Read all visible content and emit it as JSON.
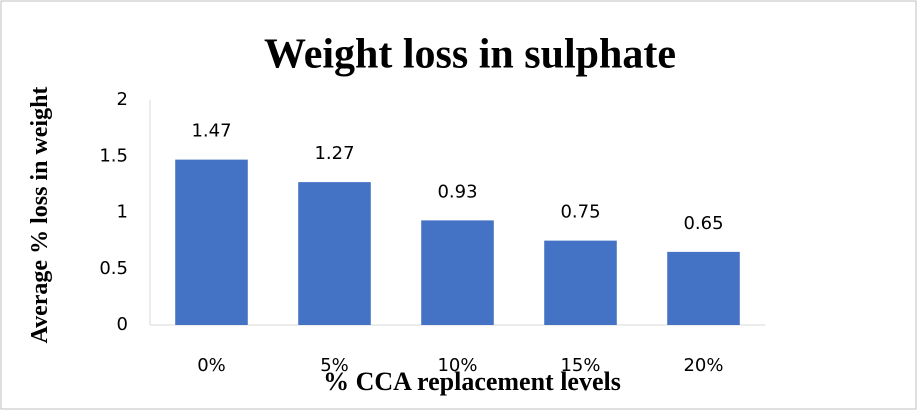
{
  "chart_data": {
    "type": "bar",
    "title": "Weight loss in sulphate",
    "x_label": "% CCA replacement levels",
    "y_label": "Average % loss in weight",
    "categories": [
      "0%",
      "5%",
      "10%",
      "15%",
      "20%"
    ],
    "values": [
      1.47,
      1.27,
      0.93,
      0.75,
      0.65
    ],
    "color": "#4472c4",
    "ylim": [
      0,
      2
    ],
    "yticks": [
      0,
      0.5,
      1,
      1.5,
      2
    ],
    "grid": false
  }
}
